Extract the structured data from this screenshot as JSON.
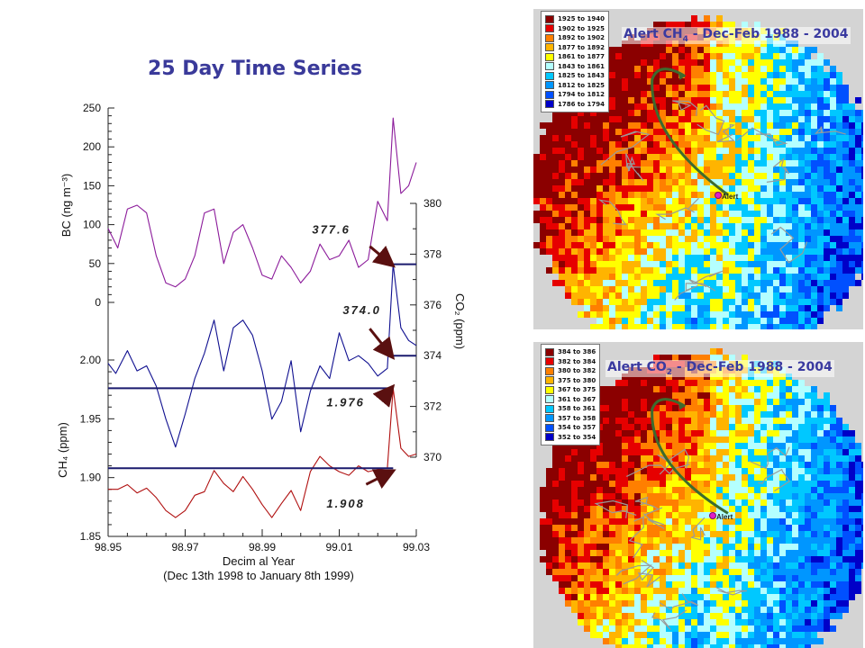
{
  "chart_data": {
    "type": "line",
    "title": "25 Day Time Series",
    "xlabel": "Decim al Year",
    "xsublabel": "(Dec 13th 1998 to January 8th 1999)",
    "xlim": [
      98.95,
      99.03
    ],
    "xticks": [
      "98.95",
      "98.97",
      "98.99",
      "99.01",
      "99.03"
    ],
    "axes": {
      "bc": {
        "label": "BC (ng m⁻³)",
        "ylim": [
          0,
          250
        ],
        "ticks": [
          "0",
          "50",
          "100",
          "150",
          "200",
          "250"
        ]
      },
      "ch4": {
        "label": "CH₄ (ppm)",
        "ylim": [
          1.85,
          2.0
        ],
        "ticks": [
          "1.85",
          "1.90",
          "1.95",
          "2.00"
        ]
      },
      "co2": {
        "label": "CO₂ (ppm)",
        "ylim": [
          370,
          380
        ],
        "ticks": [
          "370",
          "372",
          "374",
          "376",
          "378",
          "380"
        ]
      }
    },
    "series": [
      {
        "axis": "bc",
        "color": "#8b1a9a",
        "x": [
          98.95,
          98.9525,
          98.955,
          98.9575,
          98.96,
          98.9625,
          98.965,
          98.9675,
          98.97,
          98.9725,
          98.975,
          98.9775,
          98.98,
          98.9825,
          98.985,
          98.9875,
          98.99,
          98.9925,
          98.995,
          98.9975,
          99.0,
          99.0025,
          99.005,
          99.0075,
          99.01,
          99.0125,
          99.015,
          99.0175,
          99.02,
          99.0225,
          99.024,
          99.026,
          99.028,
          99.03
        ],
        "values": [
          95,
          70,
          120,
          125,
          115,
          60,
          25,
          20,
          30,
          60,
          115,
          120,
          50,
          90,
          100,
          70,
          35,
          30,
          60,
          45,
          25,
          40,
          75,
          55,
          60,
          80,
          45,
          55,
          130,
          105,
          237,
          140,
          150,
          180
        ]
      },
      {
        "axis": "co2",
        "color": "#101090",
        "x": [
          98.95,
          98.952,
          98.955,
          98.9575,
          98.96,
          98.9625,
          98.965,
          98.9675,
          98.97,
          98.9725,
          98.975,
          98.9775,
          98.98,
          98.9825,
          98.985,
          98.9875,
          98.99,
          98.9925,
          98.995,
          98.9975,
          99.0,
          99.0025,
          99.005,
          99.0075,
          99.01,
          99.0125,
          99.015,
          99.0175,
          99.02,
          99.0225,
          99.024,
          99.026,
          99.028,
          99.03
        ],
        "values": [
          373.7,
          373.3,
          374.2,
          373.4,
          373.6,
          372.8,
          371.5,
          370.4,
          371.7,
          373.1,
          374.1,
          375.4,
          373.4,
          375.1,
          375.4,
          374.8,
          373.4,
          371.5,
          372.2,
          373.8,
          371.0,
          372.6,
          373.6,
          373.1,
          374.9,
          373.8,
          374.0,
          373.7,
          373.2,
          373.5,
          377.6,
          375.1,
          374.6,
          374.4
        ]
      },
      {
        "axis": "ch4",
        "color": "#b01010",
        "x": [
          98.95,
          98.9525,
          98.955,
          98.9575,
          98.96,
          98.9625,
          98.965,
          98.9675,
          98.97,
          98.9725,
          98.975,
          98.9775,
          98.98,
          98.9825,
          98.985,
          98.9875,
          98.99,
          98.9925,
          98.995,
          98.9975,
          99.0,
          99.0025,
          99.005,
          99.0075,
          99.01,
          99.0125,
          99.015,
          99.0175,
          99.02,
          99.0225,
          99.024,
          99.026,
          99.028,
          99.03
        ],
        "values": [
          1.89,
          1.89,
          1.894,
          1.887,
          1.891,
          1.883,
          1.872,
          1.866,
          1.872,
          1.885,
          1.888,
          1.906,
          1.895,
          1.888,
          1.901,
          1.89,
          1.877,
          1.866,
          1.878,
          1.889,
          1.872,
          1.905,
          1.918,
          1.91,
          1.905,
          1.902,
          1.91,
          1.905,
          1.907,
          1.908,
          1.976,
          1.925,
          1.918,
          1.92
        ]
      }
    ],
    "reference_lines": [
      {
        "axis": "co2",
        "value": 377.6,
        "from_x": 99.024,
        "color": "#1a1a6e"
      },
      {
        "axis": "co2",
        "value": 374.0,
        "from_x": 99.024,
        "color": "#1a1a6e"
      },
      {
        "axis": "ch4",
        "value": 1.976,
        "to_x": 99.024,
        "color": "#1a1a6e"
      },
      {
        "axis": "ch4",
        "value": 1.908,
        "to_x": 99.024,
        "color": "#1a1a6e"
      }
    ],
    "annotations": [
      {
        "text": "377.6",
        "axis": "co2",
        "point_x": 99.024,
        "point_y": 377.6
      },
      {
        "text": "374.0",
        "axis": "co2",
        "point_x": 99.024,
        "point_y": 374.0
      },
      {
        "text": "1.976",
        "axis": "ch4",
        "point_x": 99.024,
        "point_y": 1.976
      },
      {
        "text": "1.908",
        "axis": "ch4",
        "point_x": 99.024,
        "point_y": 1.908
      }
    ]
  },
  "maps": [
    {
      "title": "Alert CH",
      "title_sub": "4",
      "title_rest": " - Dec-Feb 1988 - 2004",
      "station_label": "Alert",
      "legend": [
        {
          "label": "1925 to 1940",
          "color": "#8b0000"
        },
        {
          "label": "1902 to 1925",
          "color": "#e60000"
        },
        {
          "label": "1892 to 1902",
          "color": "#ff7f00"
        },
        {
          "label": "1877 to 1892",
          "color": "#ffb400"
        },
        {
          "label": "1861 to 1877",
          "color": "#ffff00"
        },
        {
          "label": "1843 to 1861",
          "color": "#b4ffff"
        },
        {
          "label": "1825 to 1843",
          "color": "#00c8ff"
        },
        {
          "label": "1812 to 1825",
          "color": "#0096ff"
        },
        {
          "label": "1794 to 1812",
          "color": "#0050ff"
        },
        {
          "label": "1786 to 1794",
          "color": "#0000c8"
        }
      ]
    },
    {
      "title": "Alert CO",
      "title_sub": "2",
      "title_rest": " - Dec-Feb 1988 - 2004",
      "station_label": "Alert",
      "legend": [
        {
          "label": "384 to 386",
          "color": "#8b0000"
        },
        {
          "label": "382 to 384",
          "color": "#e60000"
        },
        {
          "label": "380 to 382",
          "color": "#ff7f00"
        },
        {
          "label": "375 to 380",
          "color": "#ffb400"
        },
        {
          "label": "367 to 375",
          "color": "#ffff00"
        },
        {
          "label": "361 to 367",
          "color": "#b4ffff"
        },
        {
          "label": "358 to 361",
          "color": "#00c8ff"
        },
        {
          "label": "357 to 358",
          "color": "#0096ff"
        },
        {
          "label": "354 to 357",
          "color": "#0050ff"
        },
        {
          "label": "352 to 354",
          "color": "#0000c8"
        }
      ]
    }
  ]
}
